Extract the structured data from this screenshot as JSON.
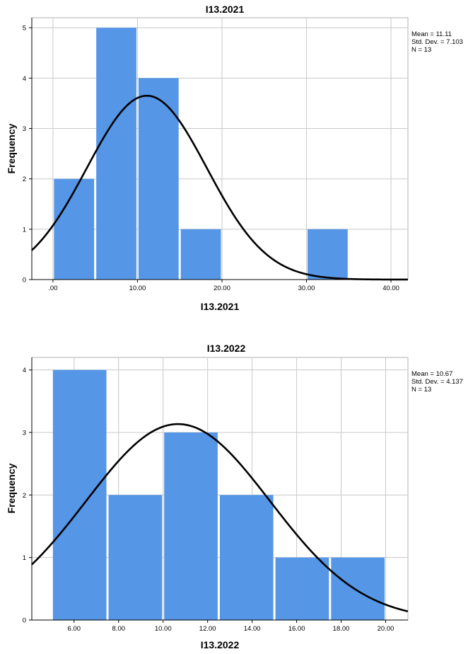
{
  "chart_data": [
    {
      "type": "histogram",
      "title": "I13.2021",
      "xlabel": "I13.2021",
      "ylabel": "Frequency",
      "bin_edges": [
        0,
        5,
        10,
        15,
        20,
        25,
        30,
        35
      ],
      "counts": [
        2,
        5,
        4,
        1,
        0,
        0,
        1
      ],
      "xlim": [
        -2.5,
        42
      ],
      "ylim": [
        0,
        5.2
      ],
      "x_ticks": [
        0,
        10,
        20,
        30,
        40
      ],
      "x_tick_labels": [
        ".00",
        "10.00",
        "20.00",
        "30.00",
        "40.00"
      ],
      "y_ticks": [
        0,
        1,
        2,
        3,
        4,
        5
      ],
      "y_tick_labels": [
        "0",
        "1",
        "2",
        "3",
        "4",
        "5"
      ],
      "normal_curve": {
        "mean": 11.11,
        "std": 7.103,
        "n": 13,
        "bin_width": 5
      },
      "stats": [
        "Mean = 11.11",
        "Std. Dev. = 7.103",
        "N = 13"
      ],
      "bar_color": "#5596e6",
      "curve_color": "#000000",
      "grid": true
    },
    {
      "type": "histogram",
      "title": "I13.2022",
      "xlabel": "I13.2022",
      "ylabel": "Frequency",
      "bin_edges": [
        5,
        7.5,
        10,
        12.5,
        15,
        17.5,
        20
      ],
      "counts": [
        4,
        2,
        3,
        2,
        1,
        1
      ],
      "xlim": [
        4.1,
        21
      ],
      "ylim": [
        0,
        4.2
      ],
      "x_ticks": [
        6,
        8,
        10,
        12,
        14,
        16,
        18,
        20
      ],
      "x_tick_labels": [
        "6.00",
        "8.00",
        "10.00",
        "12.00",
        "14.00",
        "16.00",
        "18.00",
        "20.00"
      ],
      "y_ticks": [
        0,
        1,
        2,
        3,
        4
      ],
      "y_tick_labels": [
        "0",
        "1",
        "2",
        "3",
        "4"
      ],
      "normal_curve": {
        "mean": 10.67,
        "std": 4.137,
        "n": 13,
        "bin_width": 2.5
      },
      "stats": [
        "Mean = 10.67",
        "Std. Dev. = 4.137",
        "N = 13"
      ],
      "bar_color": "#5596e6",
      "curve_color": "#000000",
      "grid": true
    }
  ]
}
